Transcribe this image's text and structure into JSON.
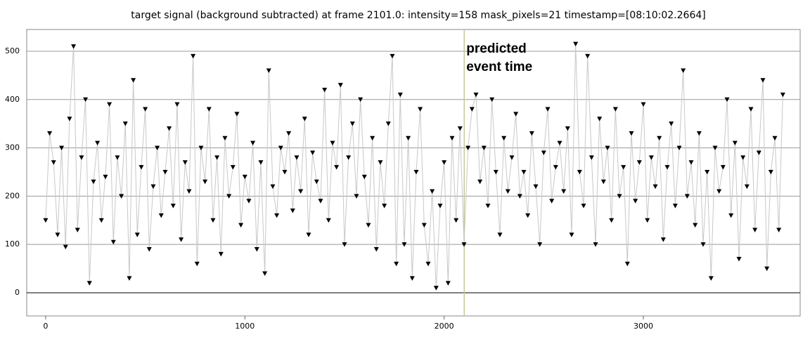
{
  "chart_data": {
    "type": "line",
    "title": "target signal (background subtracted) at frame 2101.0: intensity=158 mask_pixels=21 timestamp=[08:10:02.2664]",
    "x": [
      0,
      20,
      40,
      60,
      80,
      100,
      120,
      140,
      160,
      180,
      200,
      220,
      240,
      260,
      280,
      300,
      320,
      340,
      360,
      380,
      400,
      420,
      440,
      460,
      480,
      500,
      520,
      540,
      560,
      580,
      600,
      620,
      640,
      660,
      680,
      700,
      720,
      740,
      760,
      780,
      800,
      820,
      840,
      860,
      880,
      900,
      920,
      940,
      960,
      980,
      1000,
      1020,
      1040,
      1060,
      1080,
      1100,
      1120,
      1140,
      1160,
      1180,
      1200,
      1220,
      1240,
      1260,
      1280,
      1300,
      1320,
      1340,
      1360,
      1380,
      1400,
      1420,
      1440,
      1460,
      1480,
      1500,
      1520,
      1540,
      1560,
      1580,
      1600,
      1620,
      1640,
      1660,
      1680,
      1700,
      1720,
      1740,
      1760,
      1780,
      1800,
      1820,
      1840,
      1860,
      1880,
      1900,
      1920,
      1940,
      1960,
      1980,
      2000,
      2020,
      2040,
      2060,
      2080,
      2100,
      2120,
      2140,
      2160,
      2180,
      2200,
      2220,
      2240,
      2260,
      2280,
      2300,
      2320,
      2340,
      2360,
      2380,
      2400,
      2420,
      2440,
      2460,
      2480,
      2500,
      2520,
      2540,
      2560,
      2580,
      2600,
      2620,
      2640,
      2660,
      2680,
      2700,
      2720,
      2740,
      2760,
      2780,
      2800,
      2820,
      2840,
      2860,
      2880,
      2900,
      2920,
      2940,
      2960,
      2980,
      3000,
      3020,
      3040,
      3060,
      3080,
      3100,
      3120,
      3140,
      3160,
      3180,
      3200,
      3220,
      3240,
      3260,
      3280,
      3300,
      3320,
      3340,
      3360,
      3380,
      3400,
      3420,
      3440,
      3460,
      3480,
      3500,
      3520,
      3540,
      3560,
      3580,
      3600,
      3620,
      3640,
      3660,
      3680,
      3700
    ],
    "series": [
      {
        "color": "#000000",
        "line_color": "#c8c8c8",
        "values": [
          150,
          330,
          270,
          120,
          300,
          95,
          360,
          510,
          130,
          280,
          400,
          20,
          230,
          310,
          150,
          240,
          390,
          105,
          280,
          200,
          350,
          30,
          440,
          120,
          260,
          380,
          90,
          220,
          300,
          160,
          250,
          340,
          180,
          390,
          110,
          270,
          210,
          490,
          60,
          300,
          230,
          380,
          150,
          280,
          80,
          320,
          200,
          260,
          370,
          140,
          240,
          190,
          310,
          90,
          270,
          40,
          460,
          220,
          160,
          300,
          250,
          330,
          170,
          280,
          210,
          360,
          120,
          290,
          230,
          190,
          420,
          150,
          310,
          260,
          430,
          100,
          280,
          350,
          200,
          400,
          240,
          140,
          320,
          90,
          270,
          180,
          350,
          490,
          60,
          410,
          100,
          320,
          30,
          250,
          380,
          140,
          60,
          210,
          10,
          180,
          270,
          20,
          320,
          150,
          340,
          100,
          300,
          380,
          410,
          230,
          300,
          180,
          400,
          250,
          120,
          320,
          210,
          280,
          370,
          200,
          250,
          160,
          330,
          220,
          100,
          290,
          380,
          190,
          260,
          310,
          210,
          340,
          120,
          515,
          250,
          180,
          490,
          280,
          100,
          360,
          230,
          300,
          150,
          380,
          200,
          260,
          60,
          330,
          190,
          270,
          390,
          150,
          280,
          220,
          320,
          110,
          260,
          350,
          180,
          300,
          460,
          200,
          270,
          140,
          330,
          100,
          250,
          30,
          300,
          210,
          260,
          400,
          160,
          310,
          70,
          280,
          220,
          380,
          130,
          290,
          440,
          50,
          250,
          320,
          130,
          410
        ]
      }
    ],
    "event_frame": 2101,
    "annotation": [
      "predicted",
      "event time"
    ],
    "xlim": [
      -95,
      3787
    ],
    "ylim": [
      -48,
      545
    ],
    "xticks": [
      0,
      1000,
      2000,
      3000
    ],
    "yticks": [
      0,
      100,
      200,
      300,
      400,
      500
    ],
    "grid": true
  }
}
